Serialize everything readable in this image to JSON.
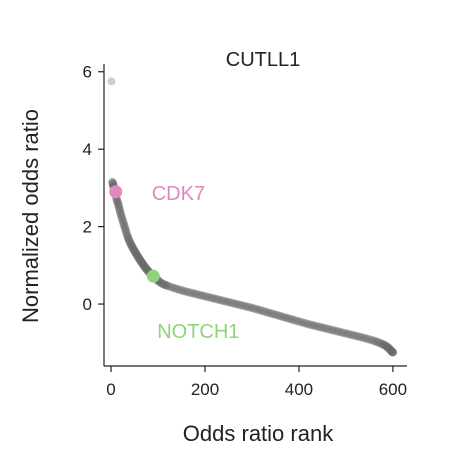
{
  "chart_data": {
    "type": "scatter",
    "title": "CUTLL1",
    "xlabel": "Odds ratio rank",
    "ylabel": "Normalized odds ratio",
    "xlim": [
      -15,
      630
    ],
    "ylim": [
      -1.6,
      6.2
    ],
    "xticks": [
      0,
      200,
      400,
      600
    ],
    "yticks": [
      0,
      2,
      4,
      6
    ],
    "grid": false,
    "legend": "none",
    "colors": {
      "points": "#6b6b6b",
      "outlier": "#cfcfcf",
      "cdk7": "#e089bd",
      "notch1": "#8fd47c"
    },
    "series": [
      {
        "points": [
          [
            1,
            5.75
          ],
          [
            3,
            3.15
          ],
          [
            5,
            3.05
          ],
          [
            8,
            2.95
          ],
          [
            12,
            2.7
          ],
          [
            16,
            2.55
          ],
          [
            20,
            2.35
          ],
          [
            25,
            2.15
          ],
          [
            30,
            1.95
          ],
          [
            35,
            1.75
          ],
          [
            40,
            1.6
          ],
          [
            45,
            1.48
          ],
          [
            50,
            1.37
          ],
          [
            55,
            1.27
          ],
          [
            60,
            1.17
          ],
          [
            65,
            1.08
          ],
          [
            70,
            0.99
          ],
          [
            75,
            0.91
          ],
          [
            80,
            0.84
          ],
          [
            85,
            0.78
          ],
          [
            95,
            0.68
          ],
          [
            100,
            0.6
          ],
          [
            110,
            0.52
          ],
          [
            120,
            0.47
          ],
          [
            140,
            0.39
          ],
          [
            160,
            0.32
          ],
          [
            180,
            0.26
          ],
          [
            200,
            0.2
          ],
          [
            220,
            0.14
          ],
          [
            240,
            0.08
          ],
          [
            260,
            0.02
          ],
          [
            280,
            -0.04
          ],
          [
            300,
            -0.1
          ],
          [
            320,
            -0.17
          ],
          [
            340,
            -0.24
          ],
          [
            360,
            -0.31
          ],
          [
            380,
            -0.38
          ],
          [
            400,
            -0.45
          ],
          [
            420,
            -0.52
          ],
          [
            440,
            -0.58
          ],
          [
            460,
            -0.64
          ],
          [
            480,
            -0.7
          ],
          [
            500,
            -0.76
          ],
          [
            520,
            -0.82
          ],
          [
            540,
            -0.88
          ],
          [
            560,
            -0.95
          ],
          [
            575,
            -1.02
          ],
          [
            585,
            -1.08
          ],
          [
            592,
            -1.15
          ],
          [
            597,
            -1.22
          ],
          [
            600,
            -1.25
          ]
        ]
      }
    ],
    "highlights": [
      {
        "label": "CDK7",
        "x": 10,
        "y": 2.9
      },
      {
        "label": "NOTCH1",
        "x": 90,
        "y": 0.72
      }
    ]
  }
}
